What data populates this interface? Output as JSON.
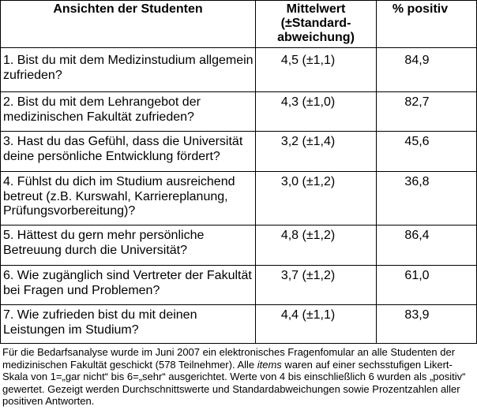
{
  "table": {
    "headers": {
      "question": "Ansichten der Studenten",
      "mean": "Mittelwert\n(±Standard-\nabweichung)",
      "positive": "% positiv"
    },
    "rows": [
      {
        "question": "1. Bist du mit dem Medizinstudium allgemein\nzufrieden?",
        "mean": "4,5 (±1,1)",
        "positive": "84,9"
      },
      {
        "question": "2. Bist du mit dem Lehrangebot der\nmedizinischen Fakultät zufrieden?",
        "mean": "4,3 (±1,0)",
        "positive": "82,7"
      },
      {
        "question": "3. Hast du das Gefühl, dass die Universität\ndeine persönliche Entwicklung fördert?",
        "mean": "3,2 (±1,4)",
        "positive": "45,6"
      },
      {
        "question": "4. Fühlst du dich im Studium ausreichend\nbetreut (z.B. Kurswahl, Karriereplanung,\nPrüfungsvorbereitung)?",
        "mean": "3,0 (±1,2)",
        "positive": "36,8"
      },
      {
        "question": "5. Hättest du gern mehr persönliche\nBetreuung durch die Universität?",
        "mean": "4,8 (±1,2)",
        "positive": "86,4"
      },
      {
        "question": "6. Wie zugänglich sind Vertreter der Fakultät\nbei Fragen und Problemen?",
        "mean": "3,7 (±1,2)",
        "positive": "61,0"
      },
      {
        "question": "7. Wie zufrieden bist du mit deinen\nLeistungen im Studium?",
        "mean": "4,4 (±1,1)",
        "positive": "83,9"
      }
    ]
  },
  "caption": {
    "before": "Für die Bedarfsanalyse wurde im Juni 2007 ein elektronisches Fragenfomular an alle Studenten der\nmedizinischen Fakultät geschickt (578 Teilnehmer). Alle ",
    "italic": "items",
    "after": " waren auf einer sechsstufigen Likert-\nSkala von 1=„gar nicht“ bis 6=„sehr“ ausgerichtet. Werte von 4 bis einschließlich 6 wurden als „positiv“\ngewertet. Gezeigt werden Durchschnittswerte und Standardabweichungen sowie Prozentzahlen aller\npositiven Antworten."
  }
}
